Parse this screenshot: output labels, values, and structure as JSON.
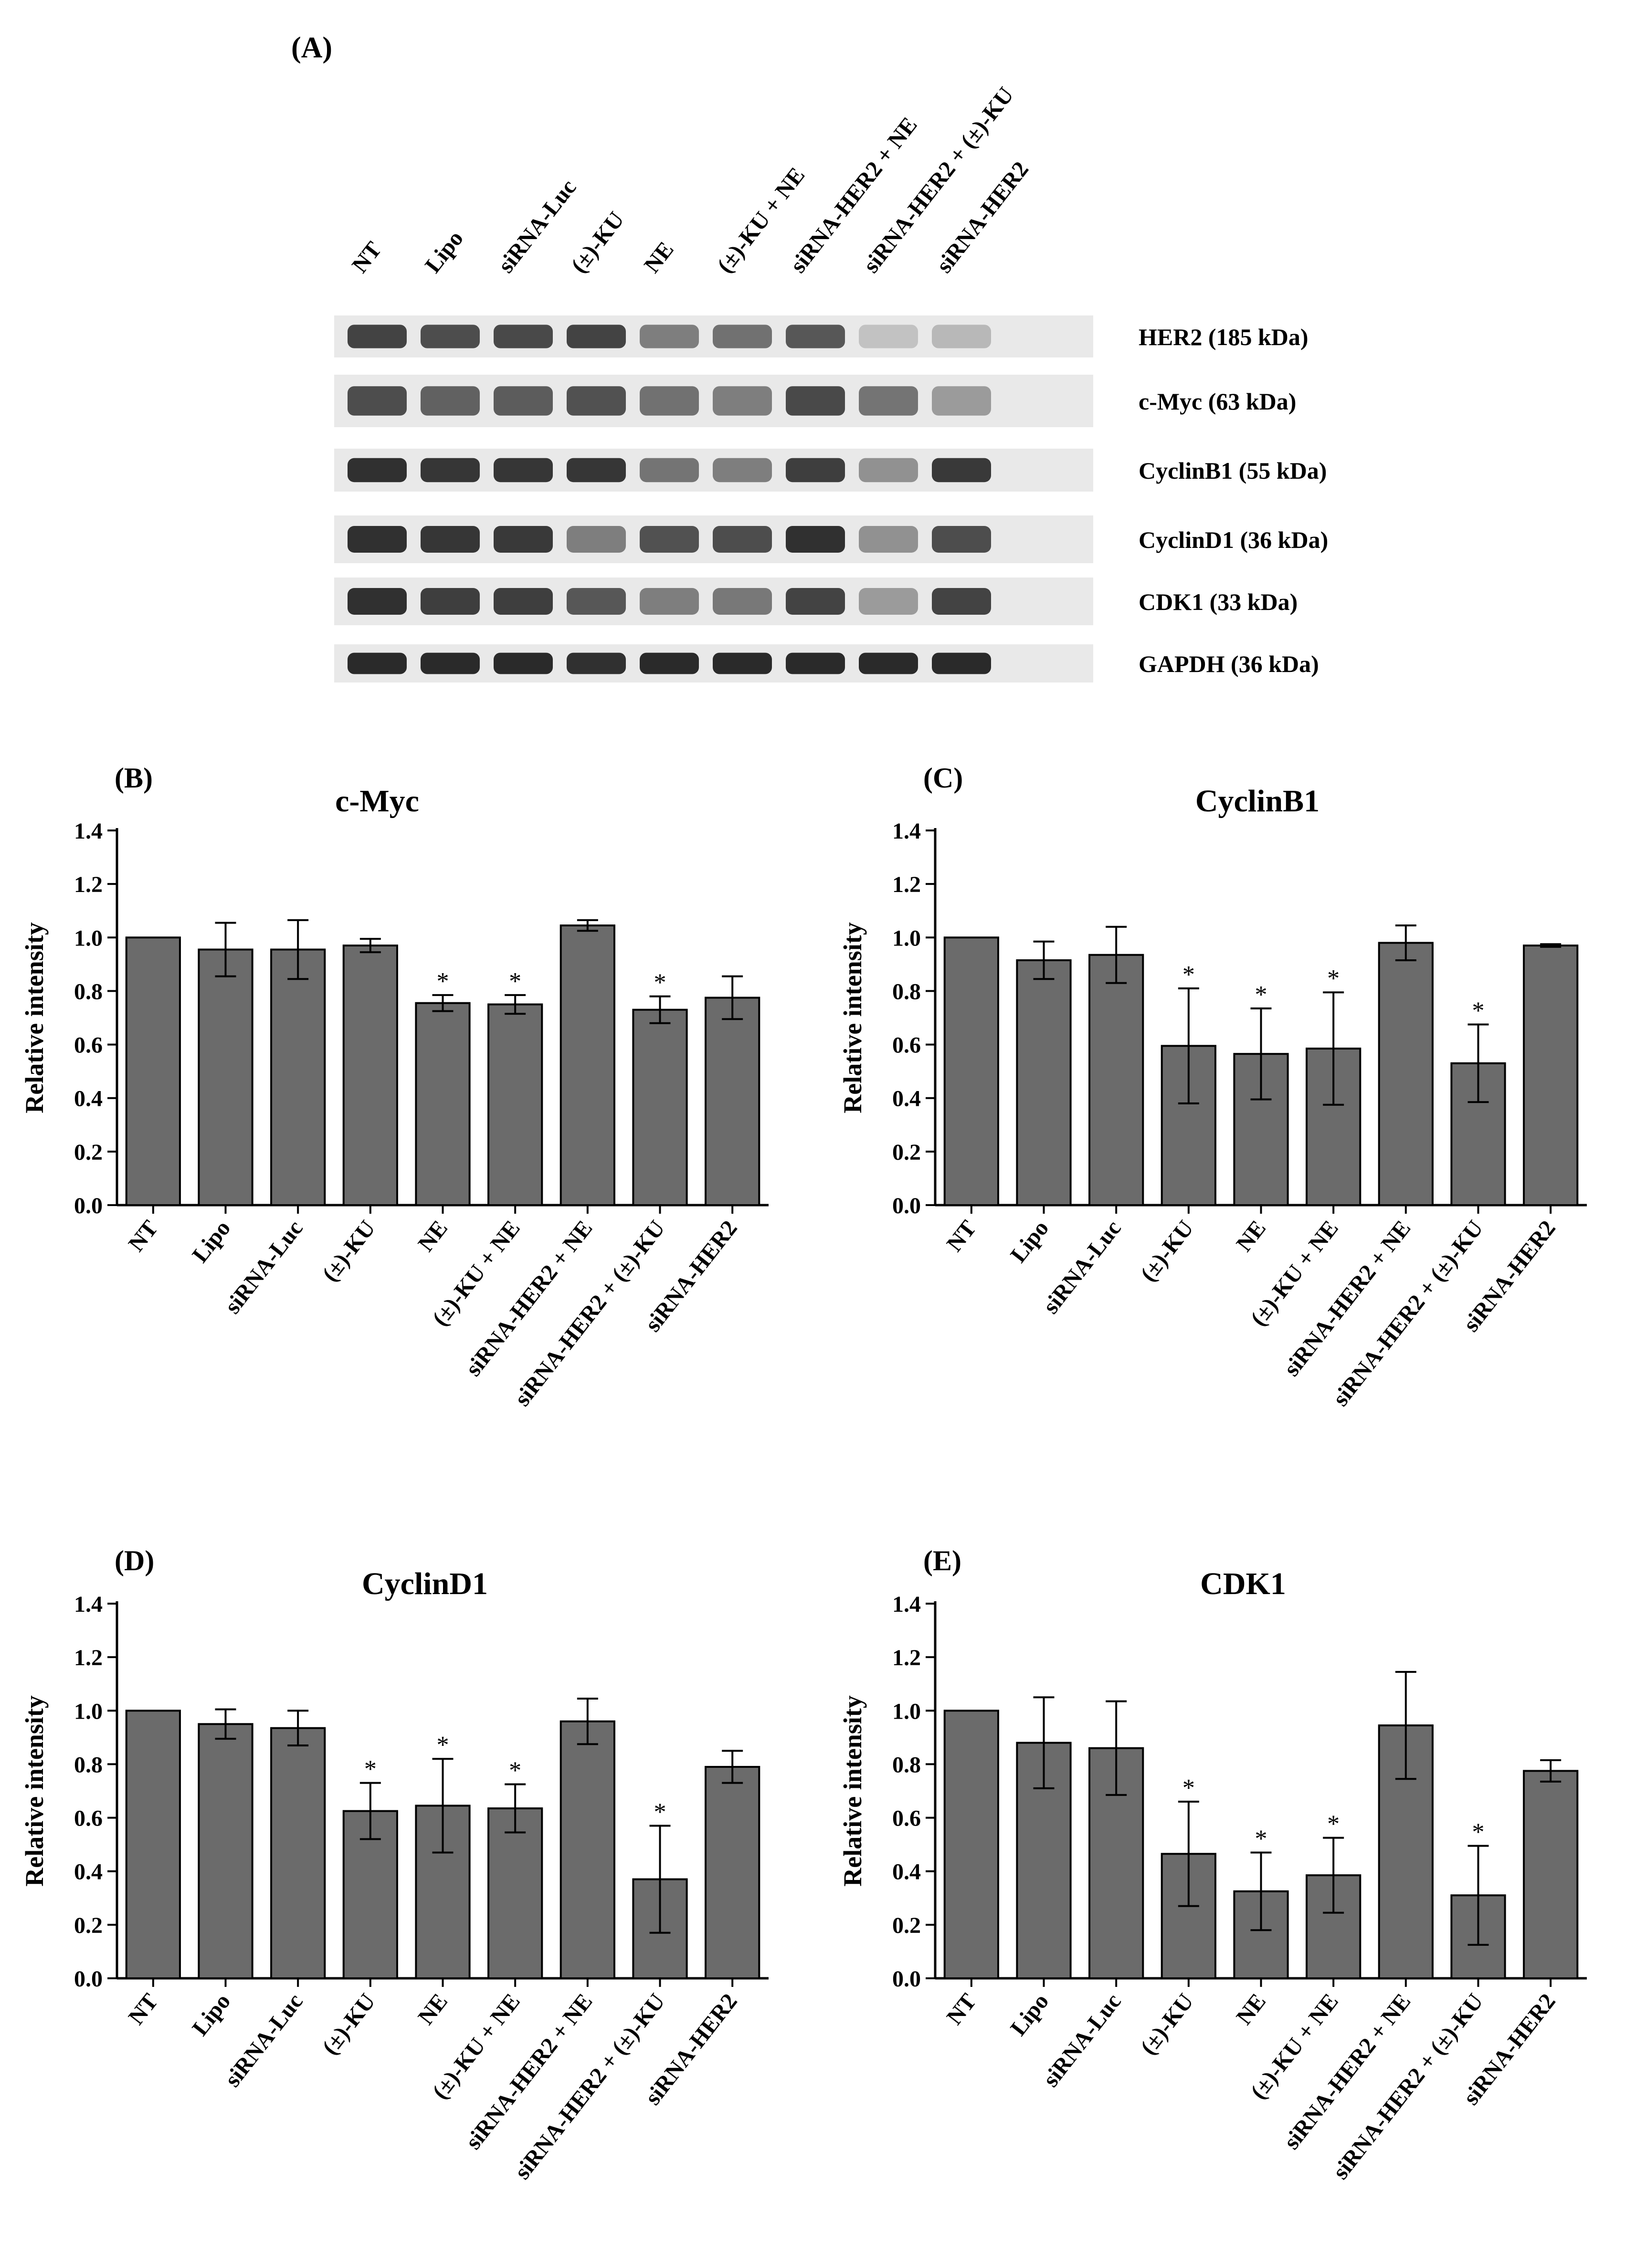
{
  "colors": {
    "bar": "#6b6b6b",
    "axis": "#000000",
    "blot_bg": "#e9e9e9",
    "band": "#262626"
  },
  "blot": {
    "panel_label": "(A)",
    "lanes": [
      "NT",
      "Lipo",
      "siRNA-Luc",
      "(±)-KU",
      "NE",
      "(±)-KU + NE",
      "siRNA-HER2 + NE",
      "siRNA-HER2 + (±)-KU",
      "siRNA-HER2"
    ],
    "rows": [
      {
        "label": "HER2 (185 kDa)",
        "intensity": [
          0.85,
          0.8,
          0.82,
          0.85,
          0.55,
          0.62,
          0.75,
          0.2,
          0.25
        ]
      },
      {
        "label": "c-Myc (63 kDa)",
        "intensity": [
          0.8,
          0.7,
          0.72,
          0.78,
          0.62,
          0.55,
          0.82,
          0.6,
          0.4
        ]
      },
      {
        "label": "CyclinB1 (55 kDa)",
        "intensity": [
          0.95,
          0.92,
          0.92,
          0.92,
          0.6,
          0.55,
          0.88,
          0.45,
          0.9
        ]
      },
      {
        "label": "CyclinD1 (36 kDa)",
        "intensity": [
          0.95,
          0.92,
          0.9,
          0.55,
          0.78,
          0.8,
          0.95,
          0.45,
          0.8
        ]
      },
      {
        "label": "CDK1 (33 kDa)",
        "intensity": [
          0.95,
          0.88,
          0.88,
          0.75,
          0.55,
          0.58,
          0.85,
          0.4,
          0.85
        ]
      },
      {
        "label": "GAPDH (36 kDa)",
        "intensity": [
          0.98,
          0.98,
          0.98,
          0.95,
          0.98,
          0.98,
          0.98,
          0.98,
          0.98
        ]
      }
    ]
  },
  "chart_data": [
    {
      "type": "bar",
      "panel": "(B)",
      "title": "c-Myc",
      "ylabel": "Relative intensity",
      "xlabel": "",
      "ylim": [
        0,
        1.4
      ],
      "yticks": [
        "0.0",
        "0.2",
        "0.4",
        "0.6",
        "0.8",
        "1.0",
        "1.2",
        "1.4"
      ],
      "categories": [
        "NT",
        "Lipo",
        "siRNA-Luc",
        "(±)-KU",
        "NE",
        "(±)-KU + NE",
        "siRNA-HER2 + NE",
        "siRNA-HER2 + (±)-KU",
        "siRNA-HER2"
      ],
      "values": [
        1.0,
        0.955,
        0.955,
        0.97,
        0.755,
        0.75,
        1.045,
        0.73,
        0.775
      ],
      "errors": [
        0.0,
        0.1,
        0.11,
        0.025,
        0.03,
        0.035,
        0.02,
        0.05,
        0.08
      ],
      "significance": [
        "",
        "",
        "",
        "",
        "*",
        "*",
        "",
        "*",
        ""
      ]
    },
    {
      "type": "bar",
      "panel": "(C)",
      "title": "CyclinB1",
      "ylabel": "Relative intensity",
      "xlabel": "",
      "ylim": [
        0,
        1.4
      ],
      "yticks": [
        "0.0",
        "0.2",
        "0.4",
        "0.6",
        "0.8",
        "1.0",
        "1.2",
        "1.4"
      ],
      "categories": [
        "NT",
        "Lipo",
        "siRNA-Luc",
        "(±)-KU",
        "NE",
        "(±)-KU + NE",
        "siRNA-HER2 + NE",
        "siRNA-HER2 + (±)-KU",
        "siRNA-HER2"
      ],
      "values": [
        1.0,
        0.915,
        0.935,
        0.595,
        0.565,
        0.585,
        0.98,
        0.53,
        0.97
      ],
      "errors": [
        0.0,
        0.07,
        0.105,
        0.215,
        0.17,
        0.21,
        0.065,
        0.145,
        0.005
      ],
      "significance": [
        "",
        "",
        "",
        "*",
        "*",
        "*",
        "",
        "*",
        ""
      ]
    },
    {
      "type": "bar",
      "panel": "(D)",
      "title": "CyclinD1",
      "ylabel": "Relative intensity",
      "xlabel": "",
      "ylim": [
        0,
        1.4
      ],
      "yticks": [
        "0.0",
        "0.2",
        "0.4",
        "0.6",
        "0.8",
        "1.0",
        "1.2",
        "1.4"
      ],
      "categories": [
        "NT",
        "Lipo",
        "siRNA-Luc",
        "(±)-KU",
        "NE",
        "(±)-KU + NE",
        "siRNA-HER2 + NE",
        "siRNA-HER2 + (±)-KU",
        "siRNA-HER2"
      ],
      "values": [
        1.0,
        0.95,
        0.935,
        0.625,
        0.645,
        0.635,
        0.96,
        0.37,
        0.79
      ],
      "errors": [
        0.0,
        0.055,
        0.065,
        0.105,
        0.175,
        0.09,
        0.085,
        0.2,
        0.06
      ],
      "significance": [
        "",
        "",
        "",
        "*",
        "*",
        "*",
        "",
        "*",
        ""
      ]
    },
    {
      "type": "bar",
      "panel": "(E)",
      "title": "CDK1",
      "ylabel": "Relative intensity",
      "xlabel": "",
      "ylim": [
        0,
        1.4
      ],
      "yticks": [
        "0.0",
        "0.2",
        "0.4",
        "0.6",
        "0.8",
        "1.0",
        "1.2",
        "1.4"
      ],
      "categories": [
        "NT",
        "Lipo",
        "siRNA-Luc",
        "(±)-KU",
        "NE",
        "(±)-KU + NE",
        "siRNA-HER2 + NE",
        "siRNA-HER2 + (±)-KU",
        "siRNA-HER2"
      ],
      "values": [
        1.0,
        0.88,
        0.86,
        0.465,
        0.325,
        0.385,
        0.945,
        0.31,
        0.775
      ],
      "errors": [
        0.0,
        0.17,
        0.175,
        0.195,
        0.145,
        0.14,
        0.2,
        0.185,
        0.04
      ],
      "significance": [
        "",
        "",
        "",
        "*",
        "*",
        "*",
        "",
        "*",
        ""
      ]
    }
  ]
}
